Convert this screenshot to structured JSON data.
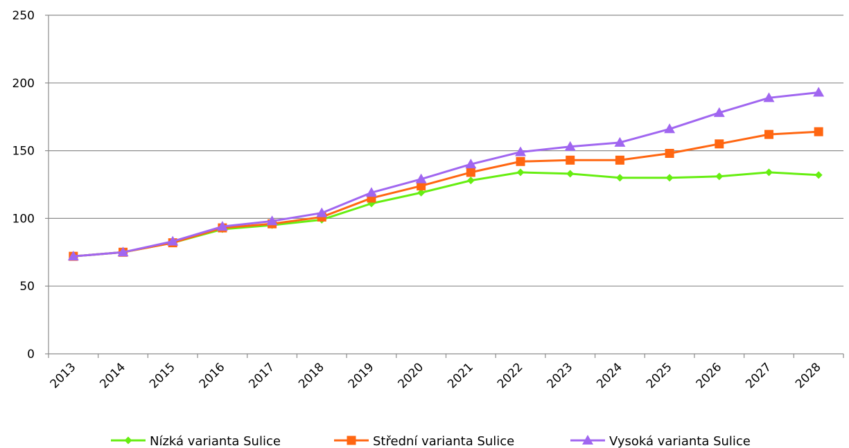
{
  "chart_data": {
    "type": "line",
    "title": "",
    "xlabel": "",
    "ylabel": "",
    "x": [
      "2013",
      "2014",
      "2015",
      "2016",
      "2017",
      "2018",
      "2019",
      "2020",
      "2021",
      "2022",
      "2023",
      "2024",
      "2025",
      "2026",
      "2027",
      "2028"
    ],
    "ylim": [
      0,
      250
    ],
    "yticks": [
      0,
      50,
      100,
      150,
      200,
      250
    ],
    "grid": true,
    "legend_position": "bottom",
    "series": [
      {
        "name": "Nízká varianta Sulice",
        "color": "#66ee11",
        "marker": "diamond",
        "values": [
          72,
          75,
          82,
          92,
          95,
          99,
          111,
          119,
          128,
          134,
          133,
          130,
          130,
          131,
          134,
          132
        ]
      },
      {
        "name": "Střední varianta Sulice",
        "color": "#ff6611",
        "marker": "square",
        "values": [
          72,
          75,
          82,
          93,
          96,
          101,
          115,
          124,
          134,
          142,
          143,
          143,
          148,
          155,
          162,
          164
        ]
      },
      {
        "name": "Vysoká varianta Sulice",
        "color": "#a066f0",
        "marker": "triangle",
        "values": [
          72,
          75,
          83,
          94,
          98,
          104,
          119,
          129,
          140,
          149,
          153,
          156,
          166,
          178,
          189,
          193
        ]
      }
    ]
  }
}
